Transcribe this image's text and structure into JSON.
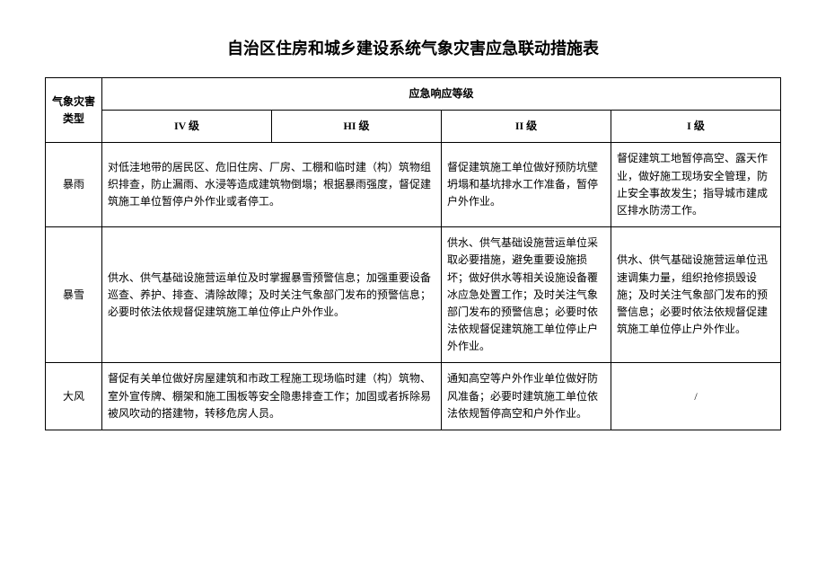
{
  "title": "自治区住房和城乡建设系统气象灾害应急联动措施表",
  "headers": {
    "type": "气象灾害类型",
    "response": "应急响应等级",
    "level4": "IV 级",
    "level3": "HI 级",
    "level2": "II 级",
    "level1": "I 级"
  },
  "rows": [
    {
      "type": "暴雨",
      "l4_3": "对低洼地带的居民区、危旧住房、厂房、工棚和临时建（构）筑物组织排查，防止漏雨、水浸等造成建筑物倒塌；根据暴雨强度，督促建筑施工单位暂停户外作业或者停工。",
      "l2": "督促建筑施工单位做好预防坑壁坍塌和基坑排水工作准备，暂停户外作业。",
      "l1": "督促建筑工地暂停高空、露天作业，做好施工现场安全管理，防止安全事故发生；指导城市建成区排水防涝工作。"
    },
    {
      "type": "暴雪",
      "l4_3": "供水、供气基础设施营运单位及时掌握暴雪预警信息；加强重要设备巡查、养护、排查、清除故障；及时关注气象部门发布的预警信息；必要时依法依规督促建筑施工单位停止户外作业。",
      "l2": "供水、供气基础设施营运单位采取必要措施，避免重要设施损坏；做好供水等相关设施设备覆冰应急处置工作；及时关注气象部门发布的预警信息；必要时依法依规督促建筑施工单位停止户外作业。",
      "l1": "供水、供气基础设施营运单位迅速调集力量，组织抢修损毁设施；及时关注气象部门发布的预警信息；必要时依法依规督促建筑施工单位停止户外作业。"
    },
    {
      "type": "大风",
      "l4_3": "督促有关单位做好房屋建筑和市政工程施工现场临时建（构）筑物、室外宣传牌、棚架和施工围板等安全隐患排查工作；加固或者拆除易被风吹动的搭建物，转移危房人员。",
      "l2": "通知高空等户外作业单位做好防风准备；必要时建筑施工单位依法依规暂停高空和户外作业。",
      "l1": "/"
    }
  ]
}
